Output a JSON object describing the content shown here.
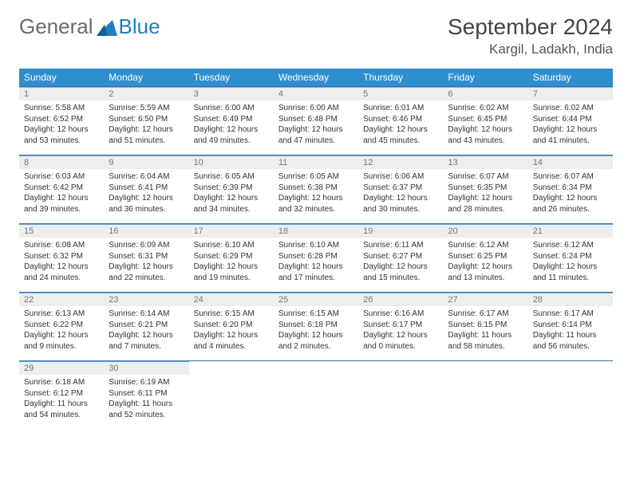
{
  "logo": {
    "part1": "General",
    "part2": "Blue"
  },
  "title": "September 2024",
  "location": "Kargil, Ladakh, India",
  "header_bg": "#2f8fce",
  "border_color": "#2f6fa8",
  "weekdays": [
    "Sunday",
    "Monday",
    "Tuesday",
    "Wednesday",
    "Thursday",
    "Friday",
    "Saturday"
  ],
  "days": [
    {
      "n": "1",
      "sunrise": "5:58 AM",
      "sunset": "6:52 PM",
      "dl_h": 12,
      "dl_m": 53
    },
    {
      "n": "2",
      "sunrise": "5:59 AM",
      "sunset": "6:50 PM",
      "dl_h": 12,
      "dl_m": 51
    },
    {
      "n": "3",
      "sunrise": "6:00 AM",
      "sunset": "6:49 PM",
      "dl_h": 12,
      "dl_m": 49
    },
    {
      "n": "4",
      "sunrise": "6:00 AM",
      "sunset": "6:48 PM",
      "dl_h": 12,
      "dl_m": 47
    },
    {
      "n": "5",
      "sunrise": "6:01 AM",
      "sunset": "6:46 PM",
      "dl_h": 12,
      "dl_m": 45
    },
    {
      "n": "6",
      "sunrise": "6:02 AM",
      "sunset": "6:45 PM",
      "dl_h": 12,
      "dl_m": 43
    },
    {
      "n": "7",
      "sunrise": "6:02 AM",
      "sunset": "6:44 PM",
      "dl_h": 12,
      "dl_m": 41
    },
    {
      "n": "8",
      "sunrise": "6:03 AM",
      "sunset": "6:42 PM",
      "dl_h": 12,
      "dl_m": 39
    },
    {
      "n": "9",
      "sunrise": "6:04 AM",
      "sunset": "6:41 PM",
      "dl_h": 12,
      "dl_m": 36
    },
    {
      "n": "10",
      "sunrise": "6:05 AM",
      "sunset": "6:39 PM",
      "dl_h": 12,
      "dl_m": 34
    },
    {
      "n": "11",
      "sunrise": "6:05 AM",
      "sunset": "6:38 PM",
      "dl_h": 12,
      "dl_m": 32
    },
    {
      "n": "12",
      "sunrise": "6:06 AM",
      "sunset": "6:37 PM",
      "dl_h": 12,
      "dl_m": 30
    },
    {
      "n": "13",
      "sunrise": "6:07 AM",
      "sunset": "6:35 PM",
      "dl_h": 12,
      "dl_m": 28
    },
    {
      "n": "14",
      "sunrise": "6:07 AM",
      "sunset": "6:34 PM",
      "dl_h": 12,
      "dl_m": 26
    },
    {
      "n": "15",
      "sunrise": "6:08 AM",
      "sunset": "6:32 PM",
      "dl_h": 12,
      "dl_m": 24
    },
    {
      "n": "16",
      "sunrise": "6:09 AM",
      "sunset": "6:31 PM",
      "dl_h": 12,
      "dl_m": 22
    },
    {
      "n": "17",
      "sunrise": "6:10 AM",
      "sunset": "6:29 PM",
      "dl_h": 12,
      "dl_m": 19
    },
    {
      "n": "18",
      "sunrise": "6:10 AM",
      "sunset": "6:28 PM",
      "dl_h": 12,
      "dl_m": 17
    },
    {
      "n": "19",
      "sunrise": "6:11 AM",
      "sunset": "6:27 PM",
      "dl_h": 12,
      "dl_m": 15
    },
    {
      "n": "20",
      "sunrise": "6:12 AM",
      "sunset": "6:25 PM",
      "dl_h": 12,
      "dl_m": 13
    },
    {
      "n": "21",
      "sunrise": "6:12 AM",
      "sunset": "6:24 PM",
      "dl_h": 12,
      "dl_m": 11
    },
    {
      "n": "22",
      "sunrise": "6:13 AM",
      "sunset": "6:22 PM",
      "dl_h": 12,
      "dl_m": 9
    },
    {
      "n": "23",
      "sunrise": "6:14 AM",
      "sunset": "6:21 PM",
      "dl_h": 12,
      "dl_m": 7
    },
    {
      "n": "24",
      "sunrise": "6:15 AM",
      "sunset": "6:20 PM",
      "dl_h": 12,
      "dl_m": 4
    },
    {
      "n": "25",
      "sunrise": "6:15 AM",
      "sunset": "6:18 PM",
      "dl_h": 12,
      "dl_m": 2
    },
    {
      "n": "26",
      "sunrise": "6:16 AM",
      "sunset": "6:17 PM",
      "dl_h": 12,
      "dl_m": 0
    },
    {
      "n": "27",
      "sunrise": "6:17 AM",
      "sunset": "6:15 PM",
      "dl_h": 11,
      "dl_m": 58
    },
    {
      "n": "28",
      "sunrise": "6:17 AM",
      "sunset": "6:14 PM",
      "dl_h": 11,
      "dl_m": 56
    },
    {
      "n": "29",
      "sunrise": "6:18 AM",
      "sunset": "6:12 PM",
      "dl_h": 11,
      "dl_m": 54
    },
    {
      "n": "30",
      "sunrise": "6:19 AM",
      "sunset": "6:11 PM",
      "dl_h": 11,
      "dl_m": 52
    }
  ],
  "layout": {
    "start_weekday": 0,
    "total_cells": 35,
    "cols": 7
  },
  "labels": {
    "sunrise": "Sunrise:",
    "sunset": "Sunset:",
    "daylight": "Daylight:",
    "hours": "hours",
    "and": "and",
    "minutes": "minutes."
  },
  "style": {
    "body_font_size": 10,
    "header_font_size": 12,
    "title_font_size": 28,
    "location_font_size": 17,
    "daynum_bg": "#eceef0"
  }
}
